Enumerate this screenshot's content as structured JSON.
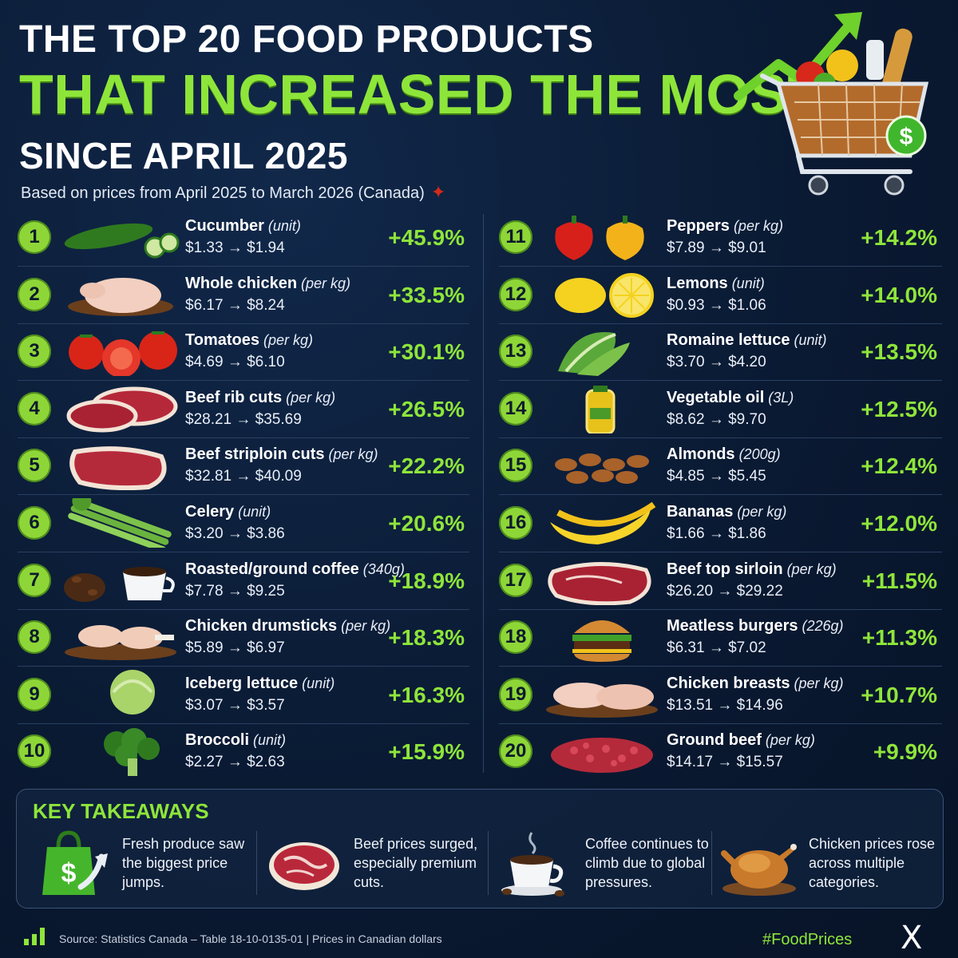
{
  "header": {
    "line1": "THE TOP 20 FOOD PRODUCTS",
    "line2": "THAT INCREASED THE MOST",
    "line3": "SINCE APRIL 2025",
    "subtitle": "Based on prices from April 2025 to March 2026 (Canada)"
  },
  "items": [
    {
      "rank": "1",
      "name": "Cucumber",
      "unit": "(unit)",
      "prices": "$1.33 → $1.94",
      "pct": "+45.9%"
    },
    {
      "rank": "2",
      "name": "Whole chicken",
      "unit": "(per kg)",
      "prices": "$6.17 → $8.24",
      "pct": "+33.5%"
    },
    {
      "rank": "3",
      "name": "Tomatoes",
      "unit": "(per kg)",
      "prices": "$4.69 → $6.10",
      "pct": "+30.1%"
    },
    {
      "rank": "4",
      "name": "Beef rib cuts",
      "unit": "(per kg)",
      "prices": "$28.21 → $35.69",
      "pct": "+26.5%"
    },
    {
      "rank": "5",
      "name": "Beef striploin cuts",
      "unit": "(per kg)",
      "prices": "$32.81 → $40.09",
      "pct": "+22.2%"
    },
    {
      "rank": "6",
      "name": "Celery",
      "unit": "(unit)",
      "prices": "$3.20 → $3.86",
      "pct": "+20.6%"
    },
    {
      "rank": "7",
      "name": "Roasted/ground coffee",
      "unit": "(340g)",
      "prices": "$7.78 → $9.25",
      "pct": "+18.9%"
    },
    {
      "rank": "8",
      "name": "Chicken drumsticks",
      "unit": "(per kg)",
      "prices": "$5.89 → $6.97",
      "pct": "+18.3%"
    },
    {
      "rank": "9",
      "name": "Iceberg lettuce",
      "unit": "(unit)",
      "prices": "$3.07 → $3.57",
      "pct": "+16.3%"
    },
    {
      "rank": "10",
      "name": "Broccoli",
      "unit": "(unit)",
      "prices": "$2.27 → $2.63",
      "pct": "+15.9%"
    },
    {
      "rank": "11",
      "name": "Peppers",
      "unit": "(per kg)",
      "prices": "$7.89 → $9.01",
      "pct": "+14.2%"
    },
    {
      "rank": "12",
      "name": "Lemons",
      "unit": "(unit)",
      "prices": "$0.93 → $1.06",
      "pct": "+14.0%"
    },
    {
      "rank": "13",
      "name": "Romaine lettuce",
      "unit": "(unit)",
      "prices": "$3.70 → $4.20",
      "pct": "+13.5%"
    },
    {
      "rank": "14",
      "name": "Vegetable oil",
      "unit": "(3L)",
      "prices": "$8.62 → $9.70",
      "pct": "+12.5%"
    },
    {
      "rank": "15",
      "name": "Almonds",
      "unit": "(200g)",
      "prices": "$4.85 → $5.45",
      "pct": "+12.4%"
    },
    {
      "rank": "16",
      "name": "Bananas",
      "unit": "(per kg)",
      "prices": "$1.66 → $1.86",
      "pct": "+12.0%"
    },
    {
      "rank": "17",
      "name": "Beef top sirloin",
      "unit": "(per kg)",
      "prices": "$26.20 → $29.22",
      "pct": "+11.5%"
    },
    {
      "rank": "18",
      "name": "Meatless burgers",
      "unit": "(226g)",
      "prices": "$6.31 → $7.02",
      "pct": "+11.3%"
    },
    {
      "rank": "19",
      "name": "Chicken breasts",
      "unit": "(per kg)",
      "prices": "$13.51 → $14.96",
      "pct": "+10.7%"
    },
    {
      "rank": "20",
      "name": "Ground beef",
      "unit": "(per kg)",
      "prices": "$14.17 → $15.57",
      "pct": "+9.9%"
    }
  ],
  "takeaways": {
    "title": "KEY TAKEAWAYS",
    "items": [
      {
        "text": "Fresh produce saw the biggest price jumps.",
        "icon": "shopping-bag-dollar-icon"
      },
      {
        "text": "Beef prices surged, especially premium cuts.",
        "icon": "steak-icon"
      },
      {
        "text": "Coffee continues to climb due to global pressures.",
        "icon": "coffee-cup-icon"
      },
      {
        "text": "Chicken prices rose across multiple categories.",
        "icon": "roast-chicken-icon"
      }
    ]
  },
  "footer": {
    "source": "Source:  Statistics Canada – Table 18-10-0135-01   |   Prices in Canadian dollars",
    "hashtag": "#FoodPrices",
    "logo": "X"
  },
  "colors": {
    "accent": "#8ee53a",
    "background": "#0a1a33",
    "text": "#ffffff"
  }
}
